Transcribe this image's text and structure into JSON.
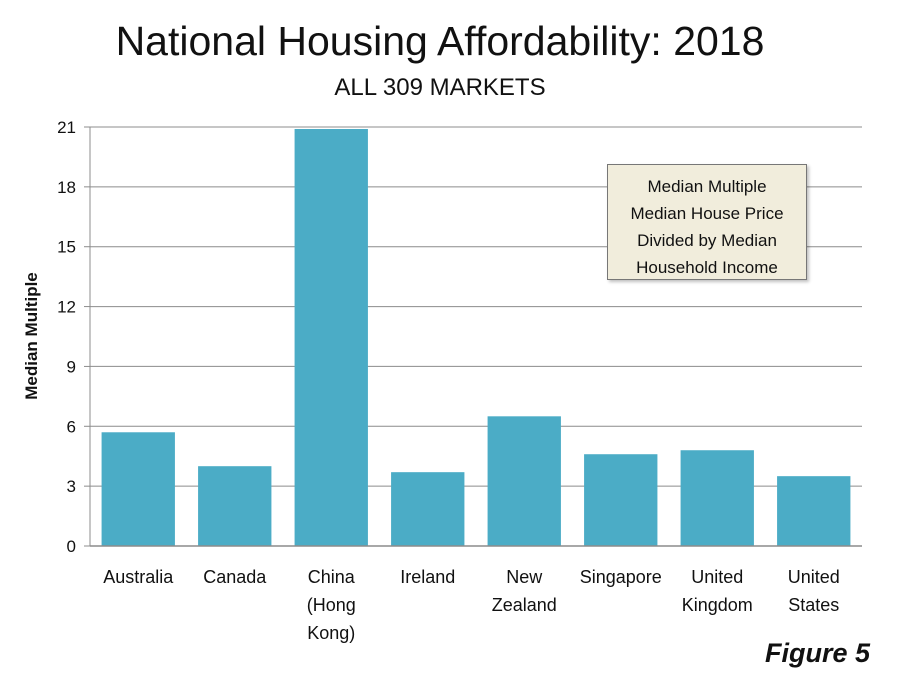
{
  "chart_data": {
    "type": "bar",
    "title": "National Housing Affordability: 2018",
    "subtitle": "ALL 309 MARKETS",
    "ylabel": "Median Multiple",
    "xlabel": "",
    "ylim": [
      0,
      21
    ],
    "yticks": [
      0,
      3,
      6,
      9,
      12,
      15,
      18,
      21
    ],
    "grid": true,
    "categories": [
      [
        "Australia"
      ],
      [
        "Canada"
      ],
      [
        "China",
        "(Hong",
        "Kong)"
      ],
      [
        "Ireland"
      ],
      [
        "New",
        "Zealand"
      ],
      [
        "Singapore"
      ],
      [
        "United",
        "Kingdom"
      ],
      [
        "United",
        "States"
      ]
    ],
    "values": [
      5.7,
      4.0,
      20.9,
      3.7,
      6.5,
      4.6,
      4.8,
      3.5
    ],
    "bar_color": "#4bacc6",
    "note": [
      "Median Multiple",
      "Median House Price",
      "Divided by Median",
      "Household Income"
    ],
    "figure_label": "Figure 5"
  }
}
